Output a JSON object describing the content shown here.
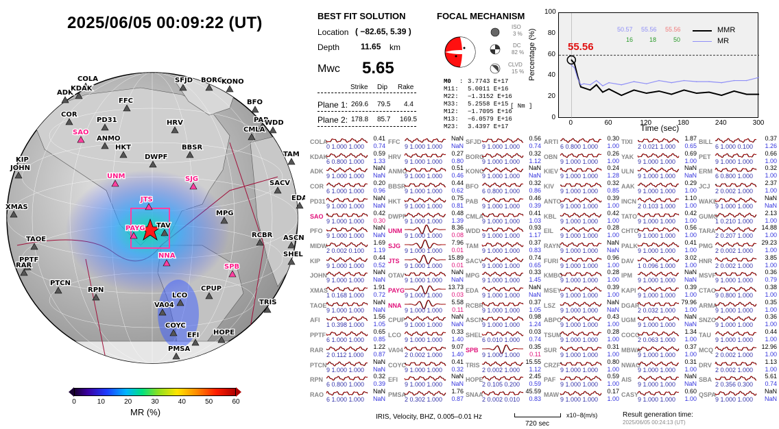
{
  "header": {
    "datetime": "2025/06/05  00:09:22 (UT)"
  },
  "map": {
    "stations_black": [
      "COLA",
      "ADK",
      "KDAK",
      "FFC",
      "SFJD",
      "BORG",
      "KONO",
      "COR",
      "PD31",
      "BFO",
      "PAB",
      "WDD",
      "ANMO",
      "HRV",
      "CMLA",
      "HKT",
      "DWPF",
      "BBSR",
      "TAM",
      "KIP",
      "JOHN",
      "SACV",
      "EDA",
      "XMAS",
      "MPG",
      "TAOE",
      "RCBR",
      "ASCN",
      "SHEL",
      "PPTF",
      "RAR",
      "PTCN",
      "RPN",
      "LCO",
      "CPUP",
      "VA04",
      "TRIS",
      "COYC",
      "EFI",
      "HOPE",
      "PMSA",
      "TAV"
    ],
    "stations_pink": [
      "SAO",
      "UNM",
      "SJG",
      "JTS",
      "PAYG",
      "NNA",
      "SPB"
    ],
    "colorbar": {
      "ticks": [
        "0",
        "10",
        "20",
        "30",
        "40",
        "50",
        "60"
      ],
      "label": "MR (%)"
    }
  },
  "solution": {
    "title": "BEST FIT SOLUTION",
    "location_label": "Location",
    "location_value": "( −82.65,  5.39 )",
    "depth_label": "Depth",
    "depth_value": "11.65",
    "depth_unit": "km",
    "mw_label": "Mwc",
    "mw_value": "5.65",
    "col_strike": "Strike",
    "col_dip": "Dip",
    "col_rake": "Rake",
    "plane1": {
      "label": "Plane 1:",
      "strike": "269.6",
      "dip": "79.5",
      "rake": "4.4"
    },
    "plane2": {
      "label": "Plane 2:",
      "strike": "178.8",
      "dip": "85.7",
      "rake": "169.5"
    }
  },
  "focal": {
    "title": "FOCAL MECHANISM",
    "iso_label": "ISO",
    "iso_value": "3 %",
    "dc_label": "DC",
    "dc_value": "82 %",
    "clvd_label": "CLVD",
    "clvd_value": "15 %",
    "m0_label": "M0",
    "m0_value": "3.7743 E+17",
    "unit": "[ Nm ]",
    "tensor": [
      {
        "label": "M11:",
        "value": "5.0011 E+16"
      },
      {
        "label": "M22:",
        "value": "−1.3152 E+16"
      },
      {
        "label": "M33:",
        "value": "5.2558 E+15"
      },
      {
        "label": "M12:",
        "value": "−1.7095 E+16"
      },
      {
        "label": "M13:",
        "value": "−6.0579 E+16"
      },
      {
        "label": "M23:",
        "value": "3.4397 E+17"
      }
    ]
  },
  "mr_plot": {
    "ylabel": "Percentage (%)",
    "xlabel": "Time (sec)",
    "yticks": [
      "0",
      "20",
      "40",
      "60",
      "80",
      "100"
    ],
    "xticks": [
      "0",
      "60",
      "120",
      "180",
      "240",
      "300"
    ],
    "peak_label": "55.56",
    "legend": {
      "mmr": "MMR",
      "mr": "MR",
      "blue_vals": [
        "50.57",
        "55.56"
      ],
      "red_val": "55.56",
      "green_vals": [
        "16",
        "18",
        "50"
      ]
    }
  },
  "chart_data": {
    "type": "line",
    "xlabel": "Time (sec)",
    "ylabel": "Percentage (%)",
    "xlim": [
      -20,
      300
    ],
    "ylim": [
      0,
      100
    ],
    "threshold": 60,
    "series": [
      {
        "name": "MMR",
        "color": "#000000",
        "x": [
          0,
          5,
          10,
          15,
          20,
          30,
          40,
          50,
          60,
          80,
          100,
          120,
          140,
          160,
          180,
          200,
          220,
          240,
          260,
          280,
          300
        ],
        "y": [
          55.56,
          52,
          40,
          30,
          29,
          27,
          32,
          25,
          28,
          22,
          27,
          24,
          26,
          23,
          27,
          24,
          25,
          22,
          26,
          23,
          23
        ]
      },
      {
        "name": "MR",
        "color": "#8f8ff7",
        "x": [
          0,
          5,
          10,
          15,
          20,
          30,
          40,
          50,
          60,
          80,
          100,
          120,
          140,
          160,
          180,
          200,
          220,
          240,
          260,
          280,
          300
        ],
        "y": [
          50.57,
          48,
          38,
          32,
          33,
          32,
          36,
          31,
          34,
          32,
          35,
          33,
          36,
          34,
          36,
          35,
          35,
          34,
          36,
          36,
          39
        ]
      }
    ]
  },
  "waveforms": [
    [
      {
        "stn": "COLA",
        "v1": "0.41",
        "v2": "0.74",
        "s": "0  1.000  1.000",
        "hl": false
      },
      {
        "stn": "KDAK",
        "v1": "0.59",
        "v2": "1.33",
        "s": "6  0.800  1.000",
        "hl": false
      },
      {
        "stn": "ADK",
        "v1": "NaN",
        "v2": "NaN",
        "s": "9  1.000  1.000",
        "hl": false
      },
      {
        "stn": "COR",
        "v1": "0.20",
        "v2": "0.96",
        "s": "6  1.000  1.000",
        "hl": false
      },
      {
        "stn": "PD31",
        "v1": "NaN",
        "v2": "NaN",
        "s": "9  1.000  1.000",
        "hl": false
      },
      {
        "stn": "SAO",
        "v1": "0.42",
        "v2": "0.30",
        "s": "9  1.000  1.000",
        "hl": true
      },
      {
        "stn": "PFO",
        "v1": "NaN",
        "v2": "NaN",
        "s": "9  1.000  1.000",
        "hl": false
      },
      {
        "stn": "MIDW",
        "v1": "1.69",
        "v2": "1.19",
        "s": "2  0.002  0.100",
        "hl": false
      },
      {
        "stn": "KIP",
        "v1": "0.44",
        "v2": "0.52",
        "s": "9  1.000  1.000",
        "hl": false
      },
      {
        "stn": "JOHN",
        "v1": "NaN",
        "v2": "NaN",
        "s": "9  1.000  1.000",
        "hl": false
      },
      {
        "stn": "XMAS",
        "v1": "1.91",
        "v2": "0.72",
        "s": "1  0.168  1.000",
        "hl": false
      },
      {
        "stn": "TAOE",
        "v1": "NaN",
        "v2": "NaN",
        "s": "9  1.000  1.000",
        "hl": false
      },
      {
        "stn": "AFI",
        "v1": "1.56",
        "v2": "1.05",
        "s": "1  0.398  1.000",
        "hl": false
      },
      {
        "stn": "PPTF",
        "v1": "0.65",
        "v2": "0.85",
        "s": "6  1.000  1.000",
        "hl": false
      },
      {
        "stn": "RAR",
        "v1": "1.22",
        "v2": "0.87",
        "s": "2  0.112  1.000",
        "hl": false
      },
      {
        "stn": "PTCN",
        "v1": "NaN",
        "v2": "NaN",
        "s": "9  1.000  1.000",
        "hl": false
      },
      {
        "stn": "RPN",
        "v1": "0.32",
        "v2": "0.39",
        "s": "6  0.800  1.000",
        "hl": false
      },
      {
        "stn": "RAO",
        "v1": "NaN",
        "v2": "NaN",
        "s": "6  1.000  1.000",
        "hl": false
      }
    ],
    [
      {
        "stn": "FFC",
        "v1": "NaN",
        "v2": "NaN",
        "s": "9  1.000  1.000",
        "hl": false
      },
      {
        "stn": "HRV",
        "v1": "0.27",
        "v2": "0.80",
        "s": "9  1.000  1.000",
        "hl": false
      },
      {
        "stn": "ANMO",
        "v1": "0.51",
        "v2": "0.46",
        "s": "9  1.000  1.000",
        "hl": false
      },
      {
        "stn": "BBSR",
        "v1": "0.44",
        "v2": "0.62",
        "s": "9  1.000  1.000",
        "hl": false
      },
      {
        "stn": "HKT",
        "v1": "0.75",
        "v2": "0.81",
        "s": "9  1.000  1.000",
        "hl": false
      },
      {
        "stn": "DWPF",
        "v1": "0.48",
        "v2": "1.39",
        "s": "9  1.000  1.000",
        "hl": false
      },
      {
        "stn": "UNM",
        "v1": "8.36",
        "v2": "0.08",
        "s": "9  1.000  1.000",
        "hl": true
      },
      {
        "stn": "SJG",
        "v1": "7.96",
        "v2": "0.01",
        "s": "9  1.000  1.000",
        "hl": true
      },
      {
        "stn": "JTS",
        "v1": "15.89",
        "v2": "0.01",
        "s": "9  1.000  1.000",
        "hl": true
      },
      {
        "stn": "OTAV",
        "v1": "NaN",
        "v2": "NaN",
        "s": "9  1.000  1.000",
        "hl": false
      },
      {
        "stn": "PAYG",
        "v1": "13.73",
        "v2": "0.03",
        "s": "9  1.000  1.000",
        "hl": true
      },
      {
        "stn": "NNA",
        "v1": "5.58",
        "v2": "0.11",
        "s": "9  1.000  1.000",
        "hl": true
      },
      {
        "stn": "CPUP",
        "v1": "NaN",
        "v2": "NaN",
        "s": "9  1.000  1.000",
        "hl": false
      },
      {
        "stn": "LCO",
        "v1": "0.33",
        "v2": "1.40",
        "s": "9  1.000  1.000",
        "hl": false
      },
      {
        "stn": "VA04",
        "v1": "9.07",
        "v2": "1.40",
        "s": "2  0.002  1.000",
        "hl": false
      },
      {
        "stn": "COYC",
        "v1": "0.41",
        "v2": "0.32",
        "s": "9  1.000  1.000",
        "hl": false
      },
      {
        "stn": "EFI",
        "v1": "NaN",
        "v2": "NaN",
        "s": "9  1.000  1.000",
        "hl": false
      },
      {
        "stn": "PMSA",
        "v1": "1.76",
        "v2": "0.87",
        "s": "2  0.302  1.000",
        "hl": false
      }
    ],
    [
      {
        "stn": "SFJD",
        "v1": "0.56",
        "v2": "0.74",
        "s": "9  1.000  1.000",
        "hl": false
      },
      {
        "stn": "BORG",
        "v1": "0.32",
        "v2": "1.12",
        "s": "9  1.000  1.000",
        "hl": false
      },
      {
        "stn": "KONO",
        "v1": "NaN",
        "v2": "NaN",
        "s": "9  1.000  1.000",
        "hl": false
      },
      {
        "stn": "BFO",
        "v1": "0.32",
        "v2": "0.86",
        "s": "6  0.800  1.000",
        "hl": false
      },
      {
        "stn": "PAB",
        "v1": "0.46",
        "v2": "0.39",
        "s": "9  1.000  1.000",
        "hl": false
      },
      {
        "stn": "CMLA",
        "v1": "0.41",
        "v2": "1.03",
        "s": "9  1.000  1.000",
        "hl": false
      },
      {
        "stn": "WDD",
        "v1": "0.93",
        "v2": "1.17",
        "s": "9  1.000  1.000",
        "hl": false
      },
      {
        "stn": "TAM",
        "v1": "0.37",
        "v2": "0.83",
        "s": "9  1.000  1.000",
        "hl": false
      },
      {
        "stn": "SACV",
        "v1": "0.74",
        "v2": "0.65",
        "s": "9  1.000  1.000",
        "hl": false
      },
      {
        "stn": "MPG",
        "v1": "0.33",
        "v2": "1.45",
        "s": "9  1.000  1.000",
        "hl": false
      },
      {
        "stn": "EDA",
        "v1": "NaN",
        "v2": "NaN",
        "s": "9  1.000  1.000",
        "hl": false
      },
      {
        "stn": "RCBR",
        "v1": "0.37",
        "v2": "1.05",
        "s": "9  1.000  1.000",
        "hl": false
      },
      {
        "stn": "ASCN",
        "v1": "0.98",
        "v2": "1.24",
        "s": "9  1.000  1.000",
        "hl": false
      },
      {
        "stn": "SHEL",
        "v1": "0.03",
        "v2": "0.74",
        "s": "6  0.010  1.000",
        "hl": false
      },
      {
        "stn": "SPB",
        "v1": "0.35",
        "v2": "0.11",
        "s": "9  1.000  1.000",
        "hl": true
      },
      {
        "stn": "TRIS",
        "v1": "15.55",
        "v2": "1.12",
        "s": "2  0.002  1.000",
        "hl": false
      },
      {
        "stn": "HOPE",
        "v1": "2.45",
        "v2": "0.59",
        "s": "2  0.105  0.200",
        "hl": false
      },
      {
        "stn": "SNAA",
        "v1": "45.59",
        "v2": "0.83",
        "s": "2  0.002  0.010",
        "hl": false
      }
    ],
    [
      {
        "stn": "ARTI",
        "v1": "0.30",
        "v2": "1.00",
        "s": "6  0.800  1.000",
        "hl": false
      },
      {
        "stn": "OBN",
        "v1": "0.26",
        "v2": "1.00",
        "s": "9  1.000  1.000",
        "hl": false
      },
      {
        "stn": "KIEV",
        "v1": "0.24",
        "v2": "1.28",
        "s": "9  1.000  1.000",
        "hl": false
      },
      {
        "stn": "KIV",
        "v1": "0.32",
        "v2": "0.85",
        "s": "9  1.000  1.000",
        "hl": false
      },
      {
        "stn": "ANTO",
        "v1": "0.39",
        "v2": "1.00",
        "s": "9  1.000  1.000",
        "hl": false
      },
      {
        "stn": "KBL",
        "v1": "0.42",
        "v2": "1.00",
        "s": "9  1.000  1.000",
        "hl": false
      },
      {
        "stn": "EIL",
        "v1": "0.28",
        "v2": "1.00",
        "s": "9  1.000  1.000",
        "hl": false
      },
      {
        "stn": "RAYN",
        "v1": "NaN",
        "v2": "NaN",
        "s": "9  1.000  1.000",
        "hl": false
      },
      {
        "stn": "FURI",
        "v1": "0.96",
        "v2": "1.00",
        "s": "9  1.000  1.000",
        "hl": false
      },
      {
        "stn": "KMBO",
        "v1": "0.28",
        "v2": "1.00",
        "s": "9  1.000  1.000",
        "hl": false
      },
      {
        "stn": "MSEY",
        "v1": "0.39",
        "v2": "1.00",
        "s": "9  1.000  1.000",
        "hl": false
      },
      {
        "stn": "LSZ",
        "v1": "NaN",
        "v2": "NaN",
        "s": "9  1.000  1.000",
        "hl": false
      },
      {
        "stn": "ABPO",
        "v1": "0.43",
        "v2": "1.00",
        "s": "9  1.000  1.000",
        "hl": false
      },
      {
        "stn": "TSUM",
        "v1": "0.28",
        "v2": "1.00",
        "s": "9  1.000  1.000",
        "hl": false
      },
      {
        "stn": "SUR",
        "v1": "0.31",
        "v2": "1.00",
        "s": "9  1.000  1.000",
        "hl": false
      },
      {
        "stn": "CRZF",
        "v1": "0.80",
        "v2": "1.00",
        "s": "9  1.000  1.000",
        "hl": false
      },
      {
        "stn": "PAF",
        "v1": "0.59",
        "v2": "1.00",
        "s": "9  1.000  1.000",
        "hl": false
      },
      {
        "stn": "MAW",
        "v1": "0.17",
        "v2": "1.00",
        "s": "9  1.000  1.000",
        "hl": false
      }
    ],
    [
      {
        "stn": "TIXI",
        "v1": "1.87",
        "v2": "0.65",
        "s": "2  0.021  1.000",
        "hl": false
      },
      {
        "stn": "YAK",
        "v1": "0.69",
        "v2": "1.00",
        "s": "9  1.000  1.000",
        "hl": false
      },
      {
        "stn": "ULN",
        "v1": "NaN",
        "v2": "NaN",
        "s": "9  1.000  1.000",
        "hl": false
      },
      {
        "stn": "AAK",
        "v1": "0.29",
        "v2": "1.00",
        "s": "9  1.000  1.000",
        "hl": false
      },
      {
        "stn": "INCN",
        "v1": "1.10",
        "v2": "1.00",
        "s": "2  0.103  1.000",
        "hl": false
      },
      {
        "stn": "TATO",
        "v1": "0.42",
        "v2": "1.00",
        "s": "9  1.000  1.000",
        "hl": false
      },
      {
        "stn": "CHTO",
        "v1": "0.56",
        "v2": "1.00",
        "s": "9  1.000  1.000",
        "hl": false
      },
      {
        "stn": "PALK",
        "v1": "0.41",
        "v2": "1.00",
        "s": "9  1.000  1.000",
        "hl": false
      },
      {
        "stn": "DAV",
        "v1": "3.02",
        "v2": "1.00",
        "s": "1  0.096  1.000",
        "hl": false
      },
      {
        "stn": "IPM",
        "v1": "NaN",
        "v2": "NaN",
        "s": "9  1.000  1.000",
        "hl": false
      },
      {
        "stn": "KAPI",
        "v1": "0.39",
        "v2": "1.00",
        "s": "9  1.000  1.000",
        "hl": false
      },
      {
        "stn": "DGAR",
        "v1": "79.96",
        "v2": "1.00",
        "s": "2  0.032  1.000",
        "hl": false
      },
      {
        "stn": "UGM",
        "v1": "NaN",
        "v2": "NaN",
        "s": "9  1.000  1.000",
        "hl": false
      },
      {
        "stn": "COCO",
        "v1": "1.34",
        "v2": "1.00",
        "s": "2  0.063  1.000",
        "hl": false
      },
      {
        "stn": "MBWA",
        "v1": "0.37",
        "v2": "1.00",
        "s": "9  1.000  1.000",
        "hl": false
      },
      {
        "stn": "NWAO",
        "v1": "0.31",
        "v2": "1.00",
        "s": "9  1.000  1.000",
        "hl": false
      },
      {
        "stn": "AIS",
        "v1": "NaN",
        "v2": "NaN",
        "s": "9  1.000  1.000",
        "hl": false
      },
      {
        "stn": "CASY",
        "v1": "0.60",
        "v2": "1.00",
        "s": "9  1.000  1.000",
        "hl": false
      }
    ],
    [
      {
        "stn": "BILL",
        "v1": "0.37",
        "v2": "1.26",
        "s": "6  1.000  0.100",
        "hl": false
      },
      {
        "stn": "PET",
        "v1": "0.66",
        "v2": "1.00",
        "s": "9  1.000  1.000",
        "hl": false
      },
      {
        "stn": "ERM",
        "v1": "0.32",
        "v2": "1.00",
        "s": "6  0.800  1.000",
        "hl": false
      },
      {
        "stn": "JCJ",
        "v1": "2.37",
        "v2": "1.00",
        "s": "2  0.002  1.000",
        "hl": false
      },
      {
        "stn": "WAKE",
        "v1": "NaN",
        "v2": "NaN",
        "s": "9  1.000  1.000",
        "hl": false
      },
      {
        "stn": "GUMO",
        "v1": "2.13",
        "v2": "1.00",
        "s": "1  0.210  1.000",
        "hl": false
      },
      {
        "stn": "TARA",
        "v1": "14.88",
        "v2": "1.00",
        "s": "2  0.207  1.000",
        "hl": false
      },
      {
        "stn": "PMG",
        "v1": "29.23",
        "v2": "1.00",
        "s": "2  0.002  1.000",
        "hl": false
      },
      {
        "stn": "HNR",
        "v1": "3.85",
        "v2": "1.00",
        "s": "2  0.002  1.000",
        "hl": false
      },
      {
        "stn": "MSVF",
        "v1": "0.36",
        "v2": "0.79",
        "s": "9  1.000  1.000",
        "hl": false
      },
      {
        "stn": "CTAO",
        "v1": "0.38",
        "v2": "1.00",
        "s": "9  0.800  1.000",
        "hl": false
      },
      {
        "stn": "ARMA",
        "v1": "0.35",
        "v2": "1.00",
        "s": "9  1.000  1.000",
        "hl": false
      },
      {
        "stn": "SNZO",
        "v1": "0.36",
        "v2": "1.00",
        "s": "9  1.000  1.000",
        "hl": false
      },
      {
        "stn": "TAU",
        "v1": "0.44",
        "v2": "1.00",
        "s": "9  1.000  1.000",
        "hl": false
      },
      {
        "stn": "MCQ",
        "v1": "12.96",
        "v2": "1.00",
        "s": "2  0.002  1.000",
        "hl": false
      },
      {
        "stn": "DRV",
        "v1": "1.13",
        "v2": "1.00",
        "s": "2  0.002  1.000",
        "hl": false
      },
      {
        "stn": "SBA",
        "v1": "5.61",
        "v2": "0.74",
        "s": "2  0.356  0.300",
        "hl": false
      },
      {
        "stn": "QSPA",
        "v1": "NaN",
        "v2": "NaN",
        "s": "9  1.000  1.000",
        "hl": false
      }
    ]
  ],
  "footer": {
    "iris": "IRIS,  Velocity,   BHZ,  0.005–0.01 Hz",
    "scale": "720 sec",
    "unit": "x10−8(m/s)",
    "result_label": "Result generation time:",
    "result_time": "2025/06/05 00:24:13 (UT)"
  }
}
